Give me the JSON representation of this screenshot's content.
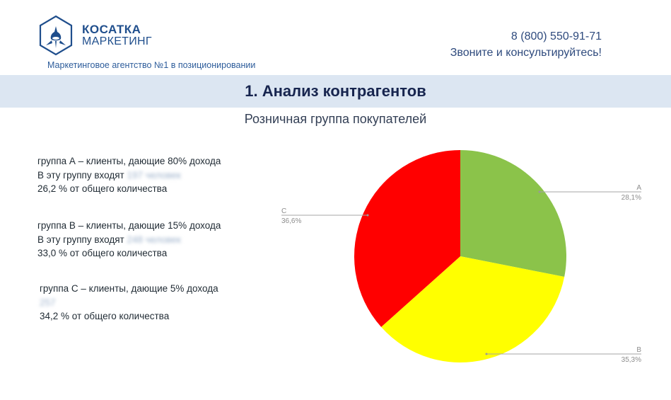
{
  "header": {
    "logo": {
      "icon": "orca-hexagon-icon",
      "name_line1": "КОСАТКА",
      "name_line2": "МАРКЕТИНГ",
      "brand_color": "#1f4e8c"
    },
    "tagline": "Маркетинговое агентство №1 в позиционировании",
    "phone": "8 (800) 550-91-71",
    "call_to_action": "Звоните и консультируйтесь!"
  },
  "section": {
    "title": "1. Анализ контрагентов",
    "band_color": "#dce6f2",
    "subtitle": "Розничная группа покупателей"
  },
  "groups": [
    {
      "line1": "группа А – клиенты, дающие 80% дохода",
      "line2_prefix": "В эту группу входят",
      "line2_blurred": "197 человек",
      "line3": "26,2 % от общего количества"
    },
    {
      "line1": "группа В – клиенты, дающие 15% дохода",
      "line2_prefix": "В эту группу входят",
      "line2_blurred": "248 человек",
      "line3": "33,0 % от общего количества"
    },
    {
      "line1": "группа С – клиенты, дающие 5% дохода",
      "line2_prefix": "",
      "line2_blurred": "257",
      "line3": "34,2 % от общего количества"
    }
  ],
  "chart_data": {
    "type": "pie",
    "title": "Розничная группа покупателей",
    "categories": [
      "A",
      "B",
      "C"
    ],
    "values": [
      28.1,
      35.3,
      36.6
    ],
    "value_labels": [
      "28,1%",
      "35,3%",
      "36,6%"
    ],
    "colors": [
      "#8bc34a",
      "#ffff00",
      "#ff0000"
    ],
    "start_angle_deg": 0,
    "direction": "clockwise",
    "legend": "none (leader-line labels)",
    "label_color": "#8c8c8c"
  }
}
